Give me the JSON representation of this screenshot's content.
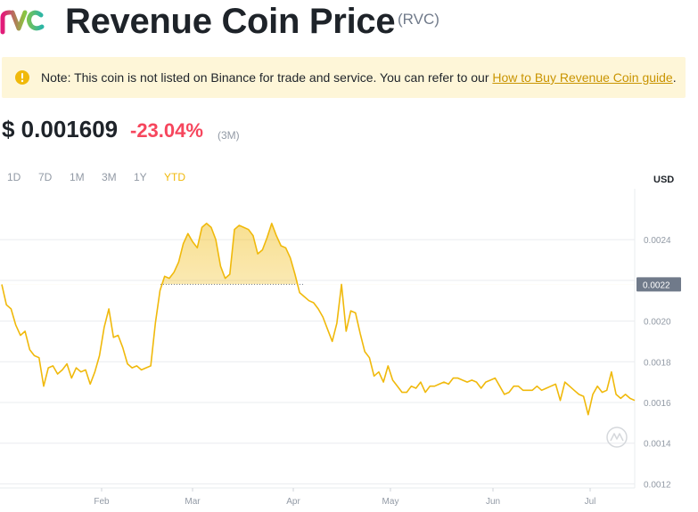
{
  "header": {
    "title": "Revenue Coin Price",
    "symbol": "(RVC)",
    "logo_icon": "revenue-coin-logo"
  },
  "notice": {
    "icon": "exclamation-icon",
    "text": "Note: This coin is not listed on Binance for trade and service. You can refer to our ",
    "link": "How to Buy Revenue Coin guide",
    "after": "."
  },
  "price": {
    "value": "$ 0.001609",
    "change": "-23.04%",
    "period": "(3M)"
  },
  "ranges": [
    "1D",
    "7D",
    "1M",
    "3M",
    "1Y",
    "YTD"
  ],
  "active_range": "YTD",
  "currency": "USD",
  "colors": {
    "line": "#f0b90b",
    "negative": "#f6465d",
    "notice_bg": "#fef6d8",
    "link": "#c99400"
  },
  "chart_data": {
    "type": "line",
    "x_ticks": [
      "Feb",
      "Mar",
      "Apr",
      "May",
      "Jun",
      "Jul"
    ],
    "y_ticks": [
      "0.0024",
      "0.0022",
      "0.0020",
      "0.0018",
      "0.0016",
      "0.0014",
      "0.0012"
    ],
    "current_label": "0.0022",
    "current_value": 0.00218,
    "ylim": [
      0.00118,
      0.00265
    ],
    "grid": true,
    "series": [
      {
        "values": [
          0.00218,
          0.00208,
          0.00206,
          0.00198,
          0.00193,
          0.00195,
          0.00186,
          0.00183,
          0.00182,
          0.00168,
          0.00177,
          0.00178,
          0.00174,
          0.00176,
          0.00179,
          0.00172,
          0.00177,
          0.00175,
          0.00176,
          0.00169,
          0.00175,
          0.00183,
          0.00197,
          0.00206,
          0.00192,
          0.00193,
          0.00187,
          0.00179,
          0.00177,
          0.00178,
          0.00176,
          0.00177,
          0.00178,
          0.00199,
          0.00215,
          0.00222,
          0.00221,
          0.00224,
          0.00229,
          0.00238,
          0.00243,
          0.00239,
          0.00236,
          0.00246,
          0.00248,
          0.00246,
          0.0024,
          0.00227,
          0.00221,
          0.00223,
          0.00245,
          0.00247,
          0.00246,
          0.00245,
          0.00242,
          0.00233,
          0.00235,
          0.00241,
          0.00248,
          0.00242,
          0.00237,
          0.00236,
          0.00231,
          0.00223,
          0.00214,
          0.00212,
          0.0021,
          0.00209,
          0.00206,
          0.00202,
          0.00196,
          0.0019,
          0.00199,
          0.00218,
          0.00195,
          0.00205,
          0.00204,
          0.00194,
          0.00185,
          0.00182,
          0.00173,
          0.00175,
          0.0017,
          0.00178,
          0.00171,
          0.00168,
          0.00165,
          0.00165,
          0.00168,
          0.00167,
          0.0017,
          0.00165,
          0.00168,
          0.00168,
          0.00169,
          0.0017,
          0.00169,
          0.00172,
          0.00172,
          0.00171,
          0.0017,
          0.00171,
          0.0017,
          0.00167,
          0.0017,
          0.00171,
          0.00172,
          0.00168,
          0.00164,
          0.00165,
          0.00168,
          0.00168,
          0.00166,
          0.00166,
          0.00166,
          0.00168,
          0.00166,
          0.00167,
          0.00168,
          0.00169,
          0.00161,
          0.0017,
          0.00168,
          0.00166,
          0.00164,
          0.00163,
          0.00154,
          0.00164,
          0.00168,
          0.00165,
          0.00166,
          0.00175,
          0.00164,
          0.00162,
          0.00164,
          0.00162,
          0.00161
        ]
      }
    ]
  }
}
